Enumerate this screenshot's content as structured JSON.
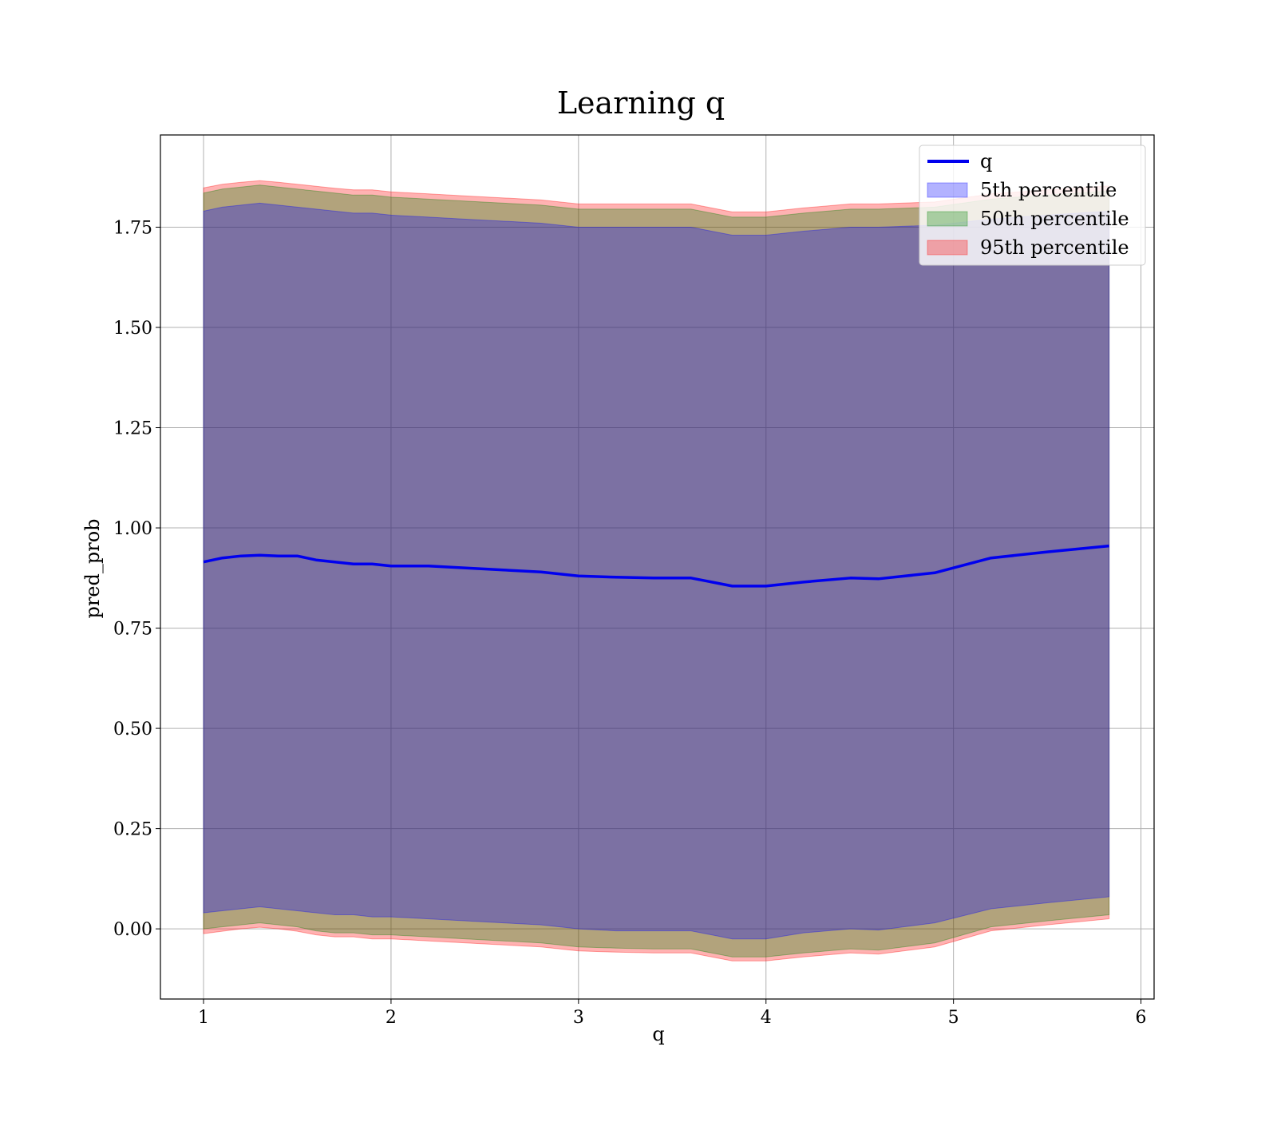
{
  "chart_data": {
    "type": "area",
    "title": "Learning q",
    "xlabel": "q",
    "ylabel": "pred_prob",
    "xlim": [
      0.77,
      6.07
    ],
    "ylim": [
      -0.175,
      1.98
    ],
    "xticks": [
      1,
      2,
      3,
      4,
      5,
      6
    ],
    "xtick_labels": [
      "1",
      "2",
      "3",
      "4",
      "5",
      "6"
    ],
    "yticks": [
      0.0,
      0.25,
      0.5,
      0.75,
      1.0,
      1.25,
      1.5,
      1.75
    ],
    "ytick_labels": [
      "0.00",
      "0.25",
      "0.50",
      "0.75",
      "1.00",
      "1.25",
      "1.50",
      "1.75"
    ],
    "grid": true,
    "legend_position": "top-right",
    "colors": {
      "line": "#0000ee",
      "band_5th": "#0000ff",
      "band_50th": "#008000",
      "band_95th": "#ff0000"
    },
    "x": [
      1.0,
      1.1,
      1.2,
      1.3,
      1.4,
      1.5,
      1.6,
      1.7,
      1.8,
      1.9,
      2.0,
      2.2,
      2.4,
      2.6,
      2.8,
      3.0,
      3.2,
      3.4,
      3.6,
      3.82,
      4.0,
      4.2,
      4.45,
      4.6,
      4.9,
      5.2,
      5.5,
      5.83
    ],
    "series": [
      {
        "name": "q",
        "kind": "line",
        "values": [
          0.915,
          0.925,
          0.93,
          0.932,
          0.93,
          0.93,
          0.92,
          0.915,
          0.91,
          0.91,
          0.905,
          0.905,
          0.9,
          0.895,
          0.89,
          0.88,
          0.877,
          0.875,
          0.875,
          0.855,
          0.855,
          0.865,
          0.875,
          0.873,
          0.888,
          0.925,
          0.94,
          0.955
        ]
      },
      {
        "name": "5th percentile",
        "kind": "band",
        "lower": [
          0.04,
          0.045,
          0.05,
          0.055,
          0.05,
          0.045,
          0.04,
          0.035,
          0.035,
          0.03,
          0.03,
          0.025,
          0.02,
          0.015,
          0.01,
          0.0,
          -0.005,
          -0.005,
          -0.005,
          -0.025,
          -0.025,
          -0.01,
          0.0,
          -0.003,
          0.015,
          0.05,
          0.065,
          0.08
        ],
        "upper": [
          1.79,
          1.8,
          1.805,
          1.81,
          1.805,
          1.8,
          1.795,
          1.79,
          1.785,
          1.785,
          1.78,
          1.775,
          1.77,
          1.765,
          1.76,
          1.75,
          1.75,
          1.75,
          1.75,
          1.73,
          1.73,
          1.74,
          1.75,
          1.75,
          1.755,
          1.77,
          1.78,
          1.79
        ]
      },
      {
        "name": "50th percentile",
        "kind": "band",
        "lower": [
          0.0,
          0.005,
          0.01,
          0.015,
          0.01,
          0.005,
          -0.005,
          -0.01,
          -0.01,
          -0.015,
          -0.015,
          -0.02,
          -0.025,
          -0.03,
          -0.035,
          -0.045,
          -0.048,
          -0.05,
          -0.05,
          -0.07,
          -0.07,
          -0.06,
          -0.05,
          -0.053,
          -0.035,
          0.005,
          0.02,
          0.035
        ],
        "upper": [
          1.835,
          1.845,
          1.85,
          1.855,
          1.85,
          1.845,
          1.84,
          1.835,
          1.83,
          1.83,
          1.825,
          1.82,
          1.815,
          1.81,
          1.805,
          1.795,
          1.795,
          1.795,
          1.795,
          1.775,
          1.775,
          1.785,
          1.795,
          1.795,
          1.8,
          1.82,
          1.83,
          1.84
        ]
      },
      {
        "name": "95th percentile",
        "kind": "band",
        "lower": [
          -0.012,
          -0.006,
          0.0,
          0.004,
          0.0,
          -0.006,
          -0.015,
          -0.02,
          -0.02,
          -0.025,
          -0.025,
          -0.03,
          -0.035,
          -0.04,
          -0.045,
          -0.055,
          -0.058,
          -0.06,
          -0.06,
          -0.08,
          -0.08,
          -0.07,
          -0.06,
          -0.063,
          -0.045,
          -0.005,
          0.01,
          0.025
        ],
        "upper": [
          1.848,
          1.857,
          1.862,
          1.866,
          1.862,
          1.857,
          1.852,
          1.847,
          1.843,
          1.843,
          1.838,
          1.833,
          1.828,
          1.823,
          1.818,
          1.808,
          1.808,
          1.808,
          1.808,
          1.788,
          1.788,
          1.798,
          1.808,
          1.808,
          1.813,
          1.833,
          1.843,
          1.853
        ]
      }
    ]
  }
}
